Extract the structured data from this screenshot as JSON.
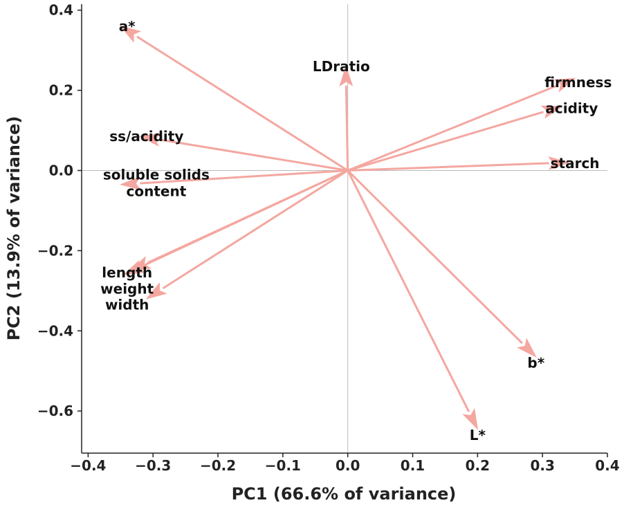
{
  "chart_data": {
    "type": "biplot",
    "xlabel": "PC1 (66.6% of variance)",
    "ylabel": "PC2 (13.9% of variance)",
    "xlim": [
      -0.41,
      0.4
    ],
    "ylim": [
      -0.705,
      0.415
    ],
    "xticks": [
      -0.4,
      -0.3,
      -0.2,
      -0.1,
      0.0,
      0.1,
      0.2,
      0.3,
      0.4
    ],
    "xtick_labels": [
      "−0.4",
      "−0.3",
      "−0.2",
      "−0.1",
      "0.0",
      "0.1",
      "0.2",
      "0.3",
      "0.4"
    ],
    "yticks": [
      0.4,
      0.2,
      0.0,
      -0.2,
      -0.4,
      -0.6
    ],
    "ytick_labels": [
      "0.4",
      "0.2",
      "0.0",
      "−0.2",
      "−0.4",
      "−0.6"
    ],
    "reference_lines": {
      "x": 0.0,
      "y": 0.0
    },
    "arrow_color": "#f4a7a0",
    "arrows": [
      {
        "name": "a*",
        "x": -0.35,
        "y": 0.36,
        "label_x": -0.34,
        "label_y": 0.36
      },
      {
        "name": "LDratio",
        "x": -0.003,
        "y": 0.26,
        "label_x": -0.01,
        "label_y": 0.26
      },
      {
        "name": "firmness",
        "x": 0.35,
        "y": 0.23,
        "label_x": 0.355,
        "label_y": 0.22
      },
      {
        "name": "acidity",
        "x": 0.33,
        "y": 0.16,
        "label_x": 0.345,
        "label_y": 0.155
      },
      {
        "name": "starch",
        "x": 0.34,
        "y": 0.02,
        "label_x": 0.35,
        "label_y": 0.018
      },
      {
        "name": "ss/acidity",
        "x": -0.32,
        "y": 0.085,
        "label_x": -0.31,
        "label_y": 0.085
      },
      {
        "name": "soluble solids\ncontent",
        "x": -0.35,
        "y": -0.035,
        "label_x": -0.295,
        "label_y": -0.01
      },
      {
        "name": "length",
        "x": -0.335,
        "y": -0.25,
        "label_x": -0.34,
        "label_y": -0.255
      },
      {
        "name": "weight",
        "x": -0.345,
        "y": -0.26,
        "label_x": -0.34,
        "label_y": -0.295
      },
      {
        "name": "width",
        "x": -0.31,
        "y": -0.32,
        "label_x": -0.34,
        "label_y": -0.335
      },
      {
        "name": "b*",
        "x": 0.29,
        "y": -0.465,
        "label_x": 0.29,
        "label_y": -0.48
      },
      {
        "name": "L*",
        "x": 0.2,
        "y": -0.645,
        "label_x": 0.2,
        "label_y": -0.66
      }
    ]
  }
}
